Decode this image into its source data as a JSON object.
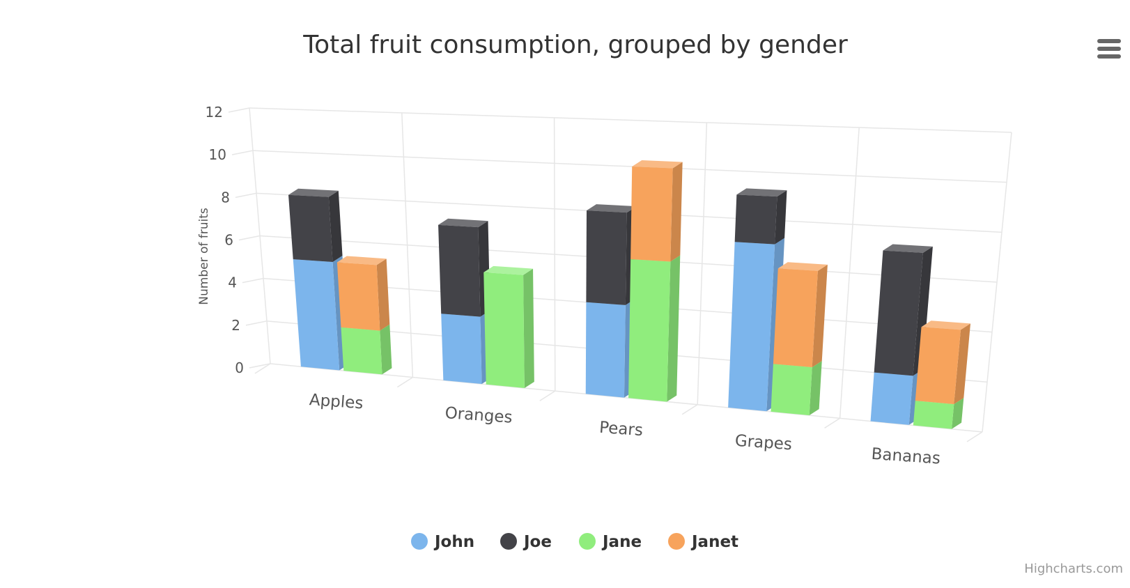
{
  "chart_data": {
    "type": "bar",
    "title": "Total fruit consumption, grouped by gender",
    "ylabel": "Number of fruits",
    "ylim": [
      0,
      12
    ],
    "yticks": [
      0,
      2,
      4,
      6,
      8,
      10,
      12
    ],
    "categories": [
      "Apples",
      "Oranges",
      "Pears",
      "Grapes",
      "Bananas"
    ],
    "stacked": true,
    "three_d": true,
    "grid": true,
    "legend_position": "bottom",
    "series": [
      {
        "name": "John",
        "stack": "male",
        "color": "#7cb5ec",
        "values": [
          5,
          3,
          4,
          7,
          2
        ]
      },
      {
        "name": "Joe",
        "stack": "male",
        "color": "#434348",
        "values": [
          3,
          4,
          4,
          2,
          5
        ]
      },
      {
        "name": "Jane",
        "stack": "female",
        "color": "#90ed7d",
        "values": [
          2,
          5,
          6,
          2,
          1
        ]
      },
      {
        "name": "Janet",
        "stack": "female",
        "color": "#f7a35c",
        "values": [
          3,
          0,
          4,
          4,
          3
        ]
      }
    ]
  },
  "credits": "Highcharts.com",
  "menu_icon": "hamburger-menu-icon"
}
